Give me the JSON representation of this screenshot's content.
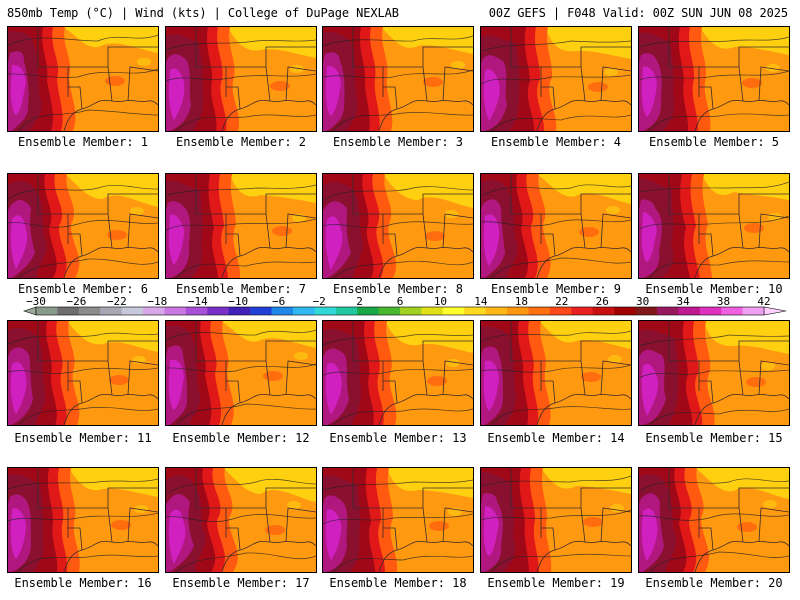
{
  "header": {
    "left": "850mb Temp (°C) | Wind (kts) | College of DuPage NEXLAB",
    "right": "00Z GEFS | F048 Valid: 00Z SUN JUN 08 2025"
  },
  "panels": [
    {
      "label": "Ensemble Member: 1"
    },
    {
      "label": "Ensemble Member: 2"
    },
    {
      "label": "Ensemble Member: 3"
    },
    {
      "label": "Ensemble Member: 4"
    },
    {
      "label": "Ensemble Member: 5"
    },
    {
      "label": "Ensemble Member: 6"
    },
    {
      "label": "Ensemble Member: 7"
    },
    {
      "label": "Ensemble Member: 8"
    },
    {
      "label": "Ensemble Member: 9"
    },
    {
      "label": "Ensemble Member: 10"
    },
    {
      "label": "Ensemble Member: 11"
    },
    {
      "label": "Ensemble Member: 12"
    },
    {
      "label": "Ensemble Member: 13"
    },
    {
      "label": "Ensemble Member: 14"
    },
    {
      "label": "Ensemble Member: 15"
    },
    {
      "label": "Ensemble Member: 16"
    },
    {
      "label": "Ensemble Member: 17"
    },
    {
      "label": "Ensemble Member: 18"
    },
    {
      "label": "Ensemble Member: 19"
    },
    {
      "label": "Ensemble Member: 20"
    }
  ],
  "colorbar": {
    "labels": [
      "−30",
      "−26",
      "−22",
      "−18",
      "−14",
      "−10",
      "−6",
      "−2",
      "2",
      "6",
      "10",
      "14",
      "18",
      "22",
      "26",
      "30",
      "34",
      "38",
      "42"
    ],
    "colors": [
      "#8a9a8a",
      "#6e6e6e",
      "#8c8c8c",
      "#a8a8b4",
      "#c8c8dc",
      "#d8a8e8",
      "#c878e0",
      "#a850d8",
      "#7830c8",
      "#4020b8",
      "#2040d8",
      "#2088e8",
      "#30b8f0",
      "#30d8d8",
      "#20c8a0",
      "#18a848",
      "#48b830",
      "#a0d020",
      "#e0e018",
      "#ffff30",
      "#ffd820",
      "#ffb818",
      "#ff9810",
      "#ff7010",
      "#ff4818",
      "#e82020",
      "#c81010",
      "#a00000",
      "#801818",
      "#981860",
      "#c01890",
      "#e030c0",
      "#f060e0",
      "#f0a0f0"
    ],
    "arrow_left": "#9aa89a",
    "arrow_right": "#ffd0ff"
  },
  "map_colors": {
    "cool": "#ffd010",
    "warm": "#ff9a10",
    "hot": "#ff5a10",
    "red": "#e01818",
    "darkred": "#a00818",
    "maroon": "#8a1030",
    "purple": "#b01880",
    "magenta": "#d020c0"
  }
}
